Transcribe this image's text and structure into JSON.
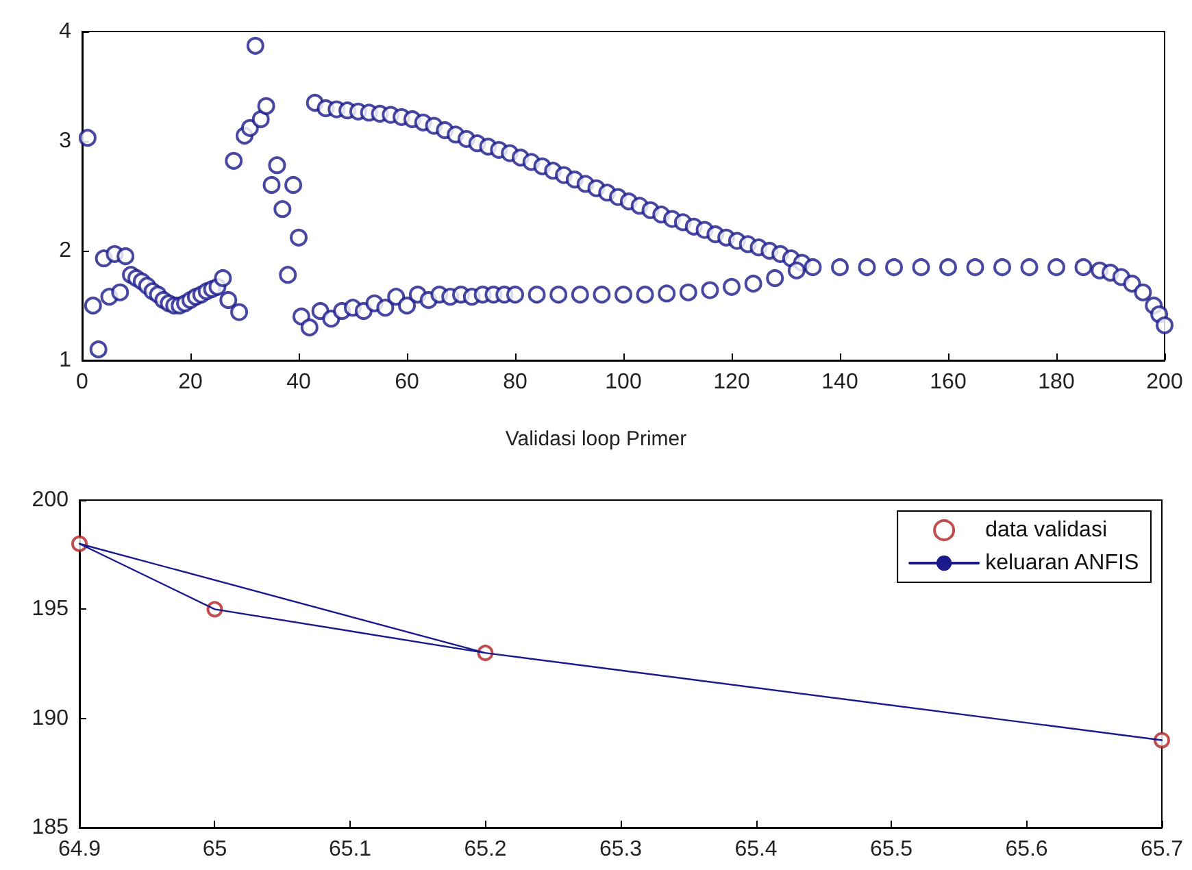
{
  "chart_data": [
    {
      "type": "scatter",
      "marker": "circle",
      "grid": false,
      "legend": false,
      "xlim": [
        0,
        200
      ],
      "xticks": [
        0,
        20,
        40,
        60,
        80,
        100,
        120,
        140,
        160,
        180,
        200
      ],
      "ylim": [
        1,
        4
      ],
      "yticks": [
        1,
        2,
        3,
        4
      ],
      "series": [
        {
          "color": "#1a1a8c",
          "x": [
            1,
            2,
            3,
            4,
            5,
            6,
            7,
            8,
            9,
            10,
            11,
            12,
            13,
            14,
            15,
            16,
            17,
            18,
            19,
            20,
            21,
            22,
            23,
            24,
            25,
            26,
            27,
            28,
            29,
            30,
            31,
            32,
            33,
            34,
            35,
            36,
            37,
            38,
            39,
            40,
            40.5,
            42,
            43,
            45,
            47,
            49,
            51,
            53,
            55,
            57,
            59,
            61,
            63,
            65,
            67,
            69,
            71,
            73,
            75,
            77,
            79,
            81,
            83,
            85,
            87,
            89,
            91,
            93,
            95,
            97,
            99,
            101,
            103,
            105,
            107,
            109,
            111,
            113,
            115,
            117,
            119,
            121,
            123,
            125,
            127,
            129,
            131,
            133,
            44,
            46,
            48,
            50,
            52,
            54,
            56,
            58,
            60,
            62,
            64,
            66,
            68,
            70,
            72,
            74,
            76,
            78,
            80,
            84,
            88,
            92,
            96,
            100,
            104,
            108,
            112,
            116,
            120,
            124,
            128,
            132,
            135,
            140,
            145,
            150,
            155,
            160,
            165,
            170,
            175,
            180,
            185,
            188,
            190,
            192,
            194,
            196,
            198,
            199,
            200
          ],
          "values": [
            3.03,
            1.5,
            1.1,
            1.93,
            1.58,
            1.97,
            1.62,
            1.95,
            1.78,
            1.75,
            1.72,
            1.68,
            1.63,
            1.6,
            1.55,
            1.52,
            1.5,
            1.5,
            1.52,
            1.55,
            1.58,
            1.6,
            1.63,
            1.65,
            1.67,
            1.75,
            1.55,
            2.82,
            1.44,
            3.05,
            3.12,
            3.87,
            3.2,
            3.32,
            2.6,
            2.78,
            2.38,
            1.78,
            2.6,
            2.12,
            1.4,
            1.3,
            3.35,
            3.3,
            3.29,
            3.28,
            3.27,
            3.26,
            3.25,
            3.24,
            3.22,
            3.2,
            3.17,
            3.14,
            3.1,
            3.06,
            3.02,
            2.98,
            2.95,
            2.92,
            2.89,
            2.85,
            2.81,
            2.77,
            2.73,
            2.69,
            2.65,
            2.61,
            2.57,
            2.53,
            2.49,
            2.45,
            2.41,
            2.37,
            2.33,
            2.29,
            2.26,
            2.22,
            2.19,
            2.15,
            2.12,
            2.09,
            2.06,
            2.03,
            2,
            1.97,
            1.93,
            1.89,
            1.45,
            1.38,
            1.45,
            1.48,
            1.45,
            1.52,
            1.48,
            1.58,
            1.5,
            1.6,
            1.55,
            1.6,
            1.58,
            1.6,
            1.58,
            1.6,
            1.6,
            1.6,
            1.6,
            1.6,
            1.6,
            1.6,
            1.6,
            1.6,
            1.6,
            1.61,
            1.62,
            1.64,
            1.67,
            1.7,
            1.75,
            1.82,
            1.85,
            1.85,
            1.85,
            1.85,
            1.85,
            1.85,
            1.85,
            1.85,
            1.85,
            1.85,
            1.85,
            1.82,
            1.8,
            1.76,
            1.7,
            1.62,
            1.5,
            1.42,
            1.32
          ]
        }
      ]
    },
    {
      "type": "line",
      "title": "Validasi loop Primer",
      "grid": false,
      "legend": "top right",
      "xlim": [
        64.9,
        65.7
      ],
      "xticks": [
        64.9,
        65,
        65.1,
        65.2,
        65.3,
        65.4,
        65.5,
        65.6,
        65.7
      ],
      "ylim": [
        185,
        200
      ],
      "yticks": [
        185,
        190,
        195,
        200
      ],
      "series": [
        {
          "name": "data validasi",
          "type": "scatter",
          "marker": "circle",
          "color": "#b22222",
          "x": [
            64.9,
            65,
            65.2,
            65.7
          ],
          "values": [
            198,
            195,
            193,
            189
          ]
        },
        {
          "name": "keluaran ANFIS",
          "marker": "none",
          "line_style": "solid",
          "color": "#1a1a8c",
          "x": [
            65.7,
            65.2,
            64.9,
            65,
            65.2
          ],
          "values": [
            189,
            193,
            198,
            195,
            193
          ]
        }
      ]
    }
  ]
}
